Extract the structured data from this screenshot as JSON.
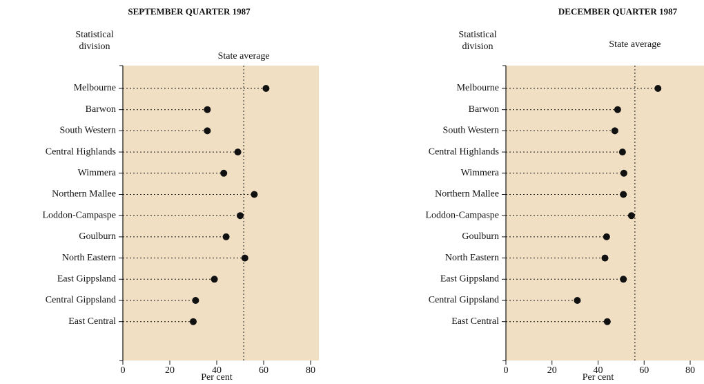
{
  "chart_data": [
    {
      "type": "dot",
      "title": "SEPTEMBER QUARTER 1987",
      "y_label": "Statistical division",
      "x_label": "Per cent",
      "categories": [
        "Melbourne",
        "Barwon",
        "South Western",
        "Central Highlands",
        "Wimmera",
        "Northern Mallee",
        "Loddon-Campaspe",
        "Goulburn",
        "North Eastern",
        "East Gippsland",
        "Central Gippsland",
        "East Central"
      ],
      "values": [
        61,
        36,
        36,
        49,
        43,
        56,
        50,
        44,
        52,
        39,
        31,
        30
      ],
      "reference": {
        "label": "State average",
        "value": 51.5
      },
      "xlim": [
        0,
        80
      ],
      "xticks": [
        0,
        20,
        40,
        60,
        80
      ],
      "color": "#111111",
      "background": "#f0dfc3"
    },
    {
      "type": "dot",
      "title": "DECEMBER QUARTER 1987",
      "y_label": "Statistical division",
      "x_label": "Per cent",
      "categories": [
        "Melbourne",
        "Barwon",
        "South Western",
        "Central Highlands",
        "Wimmera",
        "Northern Mallee",
        "Loddon-Campaspe",
        "Goulburn",
        "North Eastern",
        "East Gippsland",
        "Central Gippsland",
        "East Central"
      ],
      "values": [
        66,
        48.5,
        47.3,
        50.6,
        51.2,
        51,
        54.5,
        43.7,
        43,
        51,
        31,
        44
      ],
      "reference": {
        "label": "State average",
        "value": 56
      },
      "xlim": [
        0,
        80
      ],
      "xticks": [
        0,
        20,
        40,
        60,
        80
      ],
      "color": "#111111",
      "background": "#f0dfc3"
    }
  ]
}
